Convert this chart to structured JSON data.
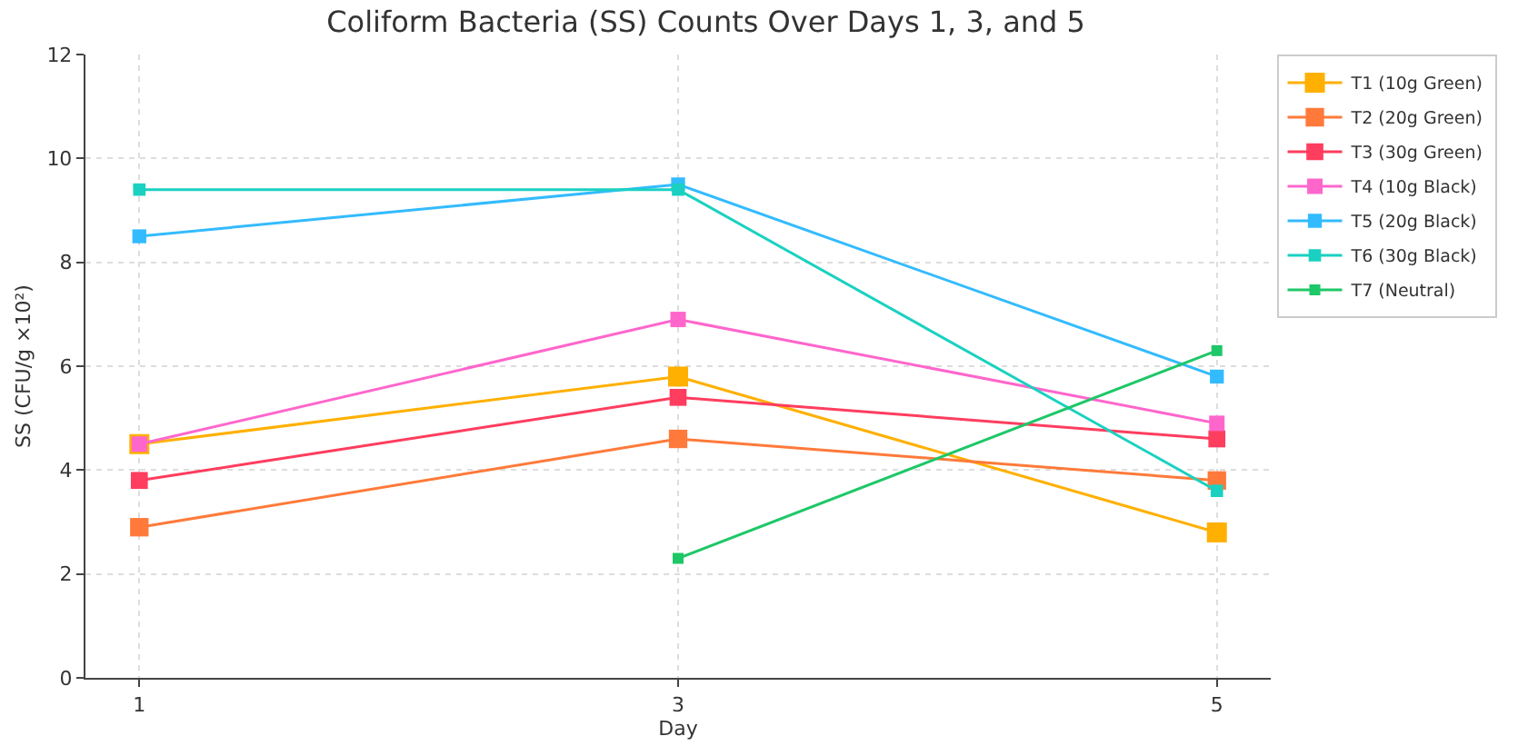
{
  "chart_data": {
    "type": "line",
    "title": "Coliform Bacteria (SS) Counts Over Days 1, 3, and 5",
    "xlabel": "Day",
    "ylabel": "SS (CFU/g ×10²)",
    "x": [
      1,
      3,
      5
    ],
    "xlim": [
      0.8,
      5.2
    ],
    "xticks": [
      1,
      3,
      5
    ],
    "ylim": [
      0,
      12
    ],
    "yticks": [
      0,
      2,
      4,
      6,
      8,
      10,
      12
    ],
    "grid": true,
    "legend": "top right",
    "marker": "square",
    "line_style": "solid",
    "series": [
      {
        "name": "T1 (10g Green)",
        "color": "#ffb000",
        "values": [
          4.5,
          5.8,
          2.8
        ]
      },
      {
        "name": "T2 (20g Green)",
        "color": "#ff7a3a",
        "values": [
          2.9,
          4.6,
          3.8
        ]
      },
      {
        "name": "T3 (30g Green)",
        "color": "#ff3d5e",
        "values": [
          3.8,
          5.4,
          4.6
        ]
      },
      {
        "name": "T4 (10g Black)",
        "color": "#ff66cc",
        "values": [
          4.5,
          6.9,
          4.9
        ]
      },
      {
        "name": "T5 (20g Black)",
        "color": "#33bbff",
        "values": [
          8.5,
          9.5,
          5.8
        ]
      },
      {
        "name": "T6 (30g Black)",
        "color": "#1ad1c1",
        "values": [
          9.4,
          9.4,
          3.6
        ]
      },
      {
        "name": "T7 (Neutral)",
        "color": "#1ec768",
        "values": [
          null,
          2.3,
          6.3
        ]
      }
    ]
  }
}
